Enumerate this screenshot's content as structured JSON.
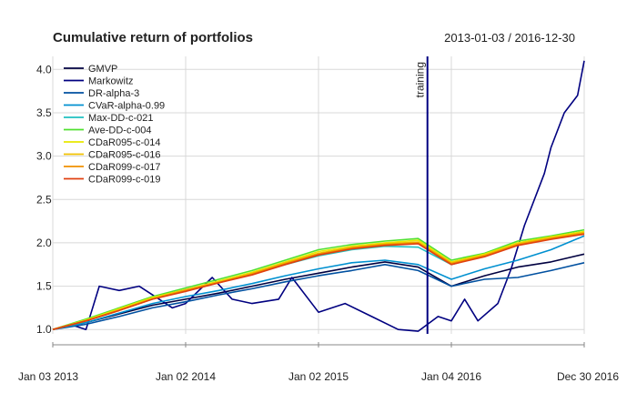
{
  "chart_data": {
    "type": "line",
    "title": "Cumulative return of portfolios",
    "date_range": "2013-01-03 / 2016-12-30",
    "xlabel": "",
    "ylabel": "",
    "grid": true,
    "legend_position": "top-left",
    "x_ticks": [
      "Jan 03 2013",
      "Jan 02 2014",
      "Jan 02 2015",
      "Jan 04 2016",
      "Dec 30 2016"
    ],
    "x_tick_positions": [
      0,
      1,
      2,
      3,
      4
    ],
    "xlim": [
      0,
      4
    ],
    "y_ticks": [
      "1.0",
      "1.5",
      "2.0",
      "2.5",
      "3.0",
      "3.5",
      "4.0"
    ],
    "ylim": [
      0.95,
      4.15
    ],
    "annotation": {
      "label": "training",
      "x": 2.82
    },
    "series": [
      {
        "name": "GMVP",
        "color": "#000040",
        "x": [
          0,
          0.25,
          0.5,
          0.75,
          1.0,
          1.25,
          1.5,
          1.75,
          2.0,
          2.25,
          2.5,
          2.75,
          3.0,
          3.25,
          3.5,
          3.75,
          4.0
        ],
        "values": [
          1.0,
          1.08,
          1.18,
          1.28,
          1.35,
          1.42,
          1.5,
          1.58,
          1.65,
          1.72,
          1.78,
          1.72,
          1.5,
          1.62,
          1.72,
          1.78,
          1.87
        ]
      },
      {
        "name": "Markowitz",
        "color": "#000080",
        "x": [
          0,
          0.15,
          0.25,
          0.35,
          0.5,
          0.65,
          0.75,
          0.9,
          1.0,
          1.2,
          1.35,
          1.5,
          1.7,
          1.8,
          2.0,
          2.2,
          2.4,
          2.6,
          2.75,
          2.9,
          3.0,
          3.1,
          3.2,
          3.35,
          3.45,
          3.55,
          3.7,
          3.75,
          3.85,
          3.95,
          4.0
        ],
        "values": [
          1.0,
          1.05,
          1.0,
          1.5,
          1.45,
          1.5,
          1.4,
          1.25,
          1.3,
          1.6,
          1.35,
          1.3,
          1.35,
          1.6,
          1.2,
          1.3,
          1.15,
          1.0,
          0.98,
          1.15,
          1.1,
          1.35,
          1.1,
          1.3,
          1.7,
          2.2,
          2.8,
          3.1,
          3.5,
          3.7,
          4.1
        ]
      },
      {
        "name": "DR-alpha-3",
        "color": "#0050a0",
        "x": [
          0,
          0.25,
          0.5,
          0.75,
          1.0,
          1.25,
          1.5,
          1.75,
          2.0,
          2.25,
          2.5,
          2.75,
          3.0,
          3.25,
          3.5,
          3.75,
          4.0
        ],
        "values": [
          1.0,
          1.06,
          1.15,
          1.25,
          1.32,
          1.4,
          1.47,
          1.55,
          1.62,
          1.68,
          1.75,
          1.68,
          1.5,
          1.58,
          1.6,
          1.68,
          1.77
        ]
      },
      {
        "name": "CVaR-alpha-0.99",
        "color": "#0090d0",
        "x": [
          0,
          0.25,
          0.5,
          0.75,
          1.0,
          1.25,
          1.5,
          1.75,
          2.0,
          2.25,
          2.5,
          2.75,
          3.0,
          3.25,
          3.5,
          3.75,
          4.0
        ],
        "values": [
          1.0,
          1.08,
          1.19,
          1.3,
          1.38,
          1.45,
          1.53,
          1.62,
          1.7,
          1.77,
          1.8,
          1.75,
          1.58,
          1.7,
          1.8,
          1.92,
          2.08
        ]
      },
      {
        "name": "Max-DD-c-021",
        "color": "#20c0c0",
        "x": [
          0,
          0.25,
          0.5,
          0.75,
          1.0,
          1.25,
          1.5,
          1.75,
          2.0,
          2.25,
          2.5,
          2.75,
          3.0,
          3.25,
          3.5,
          3.75,
          4.0
        ],
        "values": [
          1.0,
          1.1,
          1.23,
          1.36,
          1.45,
          1.55,
          1.64,
          1.75,
          1.85,
          1.92,
          1.96,
          1.95,
          1.75,
          1.85,
          1.98,
          2.05,
          2.12
        ]
      },
      {
        "name": "Ave-DD-c-004",
        "color": "#50e030",
        "x": [
          0,
          0.25,
          0.5,
          0.75,
          1.0,
          1.25,
          1.5,
          1.75,
          2.0,
          2.25,
          2.5,
          2.75,
          3.0,
          3.25,
          3.5,
          3.75,
          4.0
        ],
        "values": [
          1.0,
          1.12,
          1.25,
          1.38,
          1.48,
          1.58,
          1.68,
          1.8,
          1.92,
          1.98,
          2.02,
          2.05,
          1.8,
          1.88,
          2.02,
          2.08,
          2.15
        ]
      },
      {
        "name": "CDaR095-c-014",
        "color": "#e8e800",
        "x": [
          0,
          0.25,
          0.5,
          0.75,
          1.0,
          1.25,
          1.5,
          1.75,
          2.0,
          2.25,
          2.5,
          2.75,
          3.0,
          3.25,
          3.5,
          3.75,
          4.0
        ],
        "values": [
          1.0,
          1.11,
          1.24,
          1.37,
          1.46,
          1.56,
          1.66,
          1.78,
          1.9,
          1.96,
          2.0,
          2.03,
          1.78,
          1.87,
          2.0,
          2.07,
          2.13
        ]
      },
      {
        "name": "CDaR095-c-016",
        "color": "#f0c000",
        "x": [
          0,
          0.25,
          0.5,
          0.75,
          1.0,
          1.25,
          1.5,
          1.75,
          2.0,
          2.25,
          2.5,
          2.75,
          3.0,
          3.25,
          3.5,
          3.75,
          4.0
        ],
        "values": [
          1.0,
          1.1,
          1.23,
          1.36,
          1.46,
          1.55,
          1.65,
          1.77,
          1.88,
          1.95,
          1.99,
          2.01,
          1.77,
          1.86,
          1.99,
          2.06,
          2.12
        ]
      },
      {
        "name": "CDaR099-c-017",
        "color": "#f09000",
        "x": [
          0,
          0.25,
          0.5,
          0.75,
          1.0,
          1.25,
          1.5,
          1.75,
          2.0,
          2.25,
          2.5,
          2.75,
          3.0,
          3.25,
          3.5,
          3.75,
          4.0
        ],
        "values": [
          1.0,
          1.1,
          1.22,
          1.35,
          1.45,
          1.54,
          1.64,
          1.76,
          1.87,
          1.94,
          1.98,
          2.0,
          1.76,
          1.85,
          1.98,
          2.05,
          2.11
        ]
      },
      {
        "name": "CDaR099-c-019",
        "color": "#e04010",
        "x": [
          0,
          0.25,
          0.5,
          0.75,
          1.0,
          1.25,
          1.5,
          1.75,
          2.0,
          2.25,
          2.5,
          2.75,
          3.0,
          3.25,
          3.5,
          3.75,
          4.0
        ],
        "values": [
          1.0,
          1.1,
          1.22,
          1.35,
          1.44,
          1.54,
          1.63,
          1.75,
          1.86,
          1.93,
          1.97,
          1.99,
          1.75,
          1.84,
          1.97,
          2.04,
          2.1
        ]
      }
    ]
  }
}
